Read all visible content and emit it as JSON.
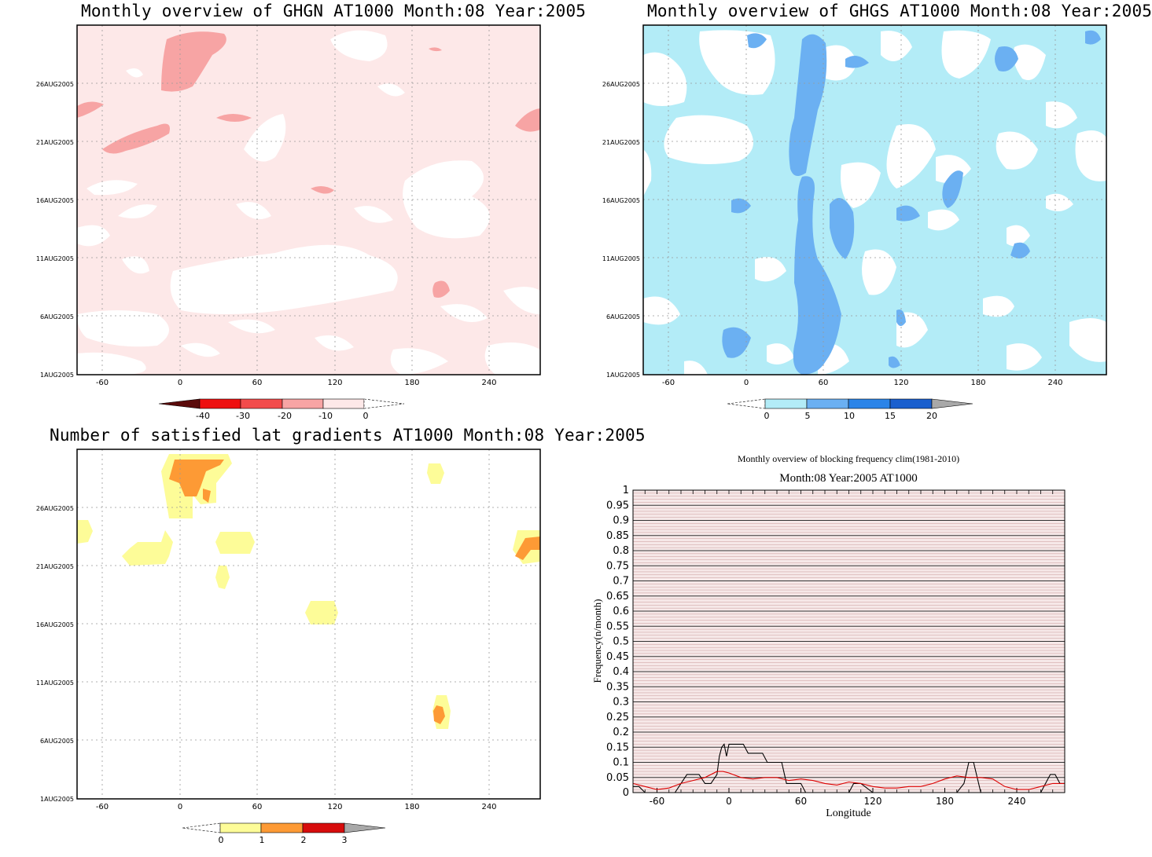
{
  "panels": [
    {
      "title": "Monthly overview of GHGN AT1000 Month:08 Year:2005",
      "xticks": [
        "-60",
        "0",
        "60",
        "120",
        "180",
        "240"
      ],
      "yticks": [
        "1AUG2005",
        "6AUG2005",
        "11AUG2005",
        "16AUG2005",
        "21AUG2005",
        "26AUG2005"
      ],
      "colorbar": {
        "labels": [
          "-40",
          "-30",
          "-20",
          "-10",
          "0"
        ],
        "colors": [
          "#5a0a0a",
          "#ee1010",
          "#f24b4b",
          "#f7a4a4",
          "#fde8e8"
        ]
      }
    },
    {
      "title": "Monthly overview of GHGS AT1000 Month:08 Year:2005",
      "xticks": [
        "-60",
        "0",
        "60",
        "120",
        "180",
        "240"
      ],
      "yticks": [
        "1AUG2005",
        "6AUG2005",
        "11AUG2005",
        "16AUG2005",
        "21AUG2005",
        "26AUG2005"
      ],
      "colorbar": {
        "labels": [
          "0",
          "5",
          "10",
          "15",
          "20"
        ],
        "colors": [
          "#b3ecf7",
          "#6bb0f2",
          "#2b84e8",
          "#1a5fce",
          "#a8a8a8"
        ]
      }
    },
    {
      "title": "Number of satisfied lat gradients AT1000 Month:08 Year:2005",
      "xticks": [
        "-60",
        "0",
        "60",
        "120",
        "180",
        "240"
      ],
      "yticks": [
        "1AUG2005",
        "6AUG2005",
        "11AUG2005",
        "16AUG2005",
        "21AUG2005",
        "26AUG2005"
      ],
      "colorbar": {
        "labels": [
          "0",
          "1",
          "2",
          "3"
        ],
        "colors": [
          "#fdfc98",
          "#fd9a35",
          "#d70c0c",
          "#a8a8a8"
        ]
      }
    }
  ],
  "chart_data": [
    {
      "type": "heatmap",
      "title": "Monthly overview of GHGN AT1000 Month:08 Year:2005",
      "xlim": [
        -80,
        280
      ],
      "x_ticks": [
        -60,
        0,
        60,
        120,
        180,
        240
      ],
      "y_ticks": [
        "1AUG2005",
        "6AUG2005",
        "11AUG2005",
        "16AUG2005",
        "21AUG2005",
        "26AUG2005"
      ],
      "levels": [
        -40,
        -30,
        -20,
        -10,
        0
      ]
    },
    {
      "type": "heatmap",
      "title": "Monthly overview of GHGS AT1000 Month:08 Year:2005",
      "xlim": [
        -80,
        280
      ],
      "x_ticks": [
        -60,
        0,
        60,
        120,
        180,
        240
      ],
      "y_ticks": [
        "1AUG2005",
        "6AUG2005",
        "11AUG2005",
        "16AUG2005",
        "21AUG2005",
        "26AUG2005"
      ],
      "levels": [
        0,
        5,
        10,
        15,
        20
      ]
    },
    {
      "type": "heatmap",
      "title": "Number of satisfied lat gradients AT1000 Month:08 Year:2005",
      "xlim": [
        -80,
        280
      ],
      "x_ticks": [
        -60,
        0,
        60,
        120,
        180,
        240
      ],
      "y_ticks": [
        "1AUG2005",
        "6AUG2005",
        "11AUG2005",
        "16AUG2005",
        "21AUG2005",
        "26AUG2005"
      ],
      "levels": [
        0,
        1,
        2,
        3
      ]
    },
    {
      "type": "line",
      "title": "Monthly overview of blocking frequency clim(1981-2010)",
      "subtitle": "Month:08 Year:2005  AT1000",
      "xlabel": "Longitude",
      "ylabel": "Frequency(n/month)",
      "xlim": [
        -80,
        280
      ],
      "ylim": [
        0,
        1
      ],
      "x_ticks": [
        -60,
        0,
        60,
        120,
        180,
        240
      ],
      "y_ticks": [
        "0",
        "0.05",
        "0.1",
        "0.15",
        "0.2",
        "0.25",
        "0.3",
        "0.35",
        "0.4",
        "0.45",
        "0.5",
        "0.55",
        "0.6",
        "0.65",
        "0.7",
        "0.75",
        "0.8",
        "0.85",
        "0.9",
        "0.95",
        "1"
      ],
      "series": [
        {
          "color": "#000000",
          "x": [
            -80,
            -75,
            -70,
            -65,
            -60,
            -50,
            -45,
            -40,
            -35,
            -30,
            -25,
            -20,
            -15,
            -10,
            -8,
            -6,
            -4,
            -2,
            0,
            4,
            8,
            12,
            16,
            20,
            24,
            28,
            32,
            36,
            40,
            44,
            48,
            52,
            56,
            60,
            64,
            80,
            100,
            104,
            110,
            120,
            140,
            160,
            180,
            190,
            196,
            200,
            204,
            210,
            216,
            220,
            240,
            250,
            260,
            264,
            268,
            272,
            276,
            280
          ],
          "y": [
            0.02,
            0.02,
            0,
            0,
            0,
            0,
            0,
            0.03,
            0.06,
            0.06,
            0.06,
            0.03,
            0.03,
            0.06,
            0.12,
            0.15,
            0.16,
            0.12,
            0.16,
            0.16,
            0.16,
            0.16,
            0.13,
            0.13,
            0.13,
            0.13,
            0.1,
            0.1,
            0.1,
            0.1,
            0.03,
            0.03,
            0.03,
            0.03,
            0,
            0,
            0,
            0.03,
            0.03,
            0,
            0,
            0,
            0,
            0,
            0.03,
            0.1,
            0.1,
            0,
            0,
            0,
            0,
            0,
            0,
            0.03,
            0.06,
            0.06,
            0.03,
            0.03
          ]
        },
        {
          "color": "#dd0000",
          "x": [
            -80,
            -70,
            -60,
            -50,
            -40,
            -30,
            -20,
            -10,
            -5,
            0,
            10,
            20,
            30,
            40,
            50,
            60,
            70,
            80,
            90,
            100,
            110,
            120,
            130,
            140,
            150,
            160,
            170,
            180,
            190,
            200,
            210,
            220,
            230,
            240,
            250,
            260,
            270,
            280
          ],
          "y": [
            0.03,
            0.02,
            0.01,
            0.015,
            0.03,
            0.04,
            0.05,
            0.07,
            0.07,
            0.065,
            0.05,
            0.045,
            0.05,
            0.05,
            0.04,
            0.045,
            0.04,
            0.03,
            0.025,
            0.035,
            0.03,
            0.02,
            0.015,
            0.015,
            0.02,
            0.02,
            0.03,
            0.045,
            0.055,
            0.05,
            0.05,
            0.045,
            0.02,
            0.01,
            0.01,
            0.02,
            0.03,
            0.03
          ]
        }
      ]
    }
  ]
}
